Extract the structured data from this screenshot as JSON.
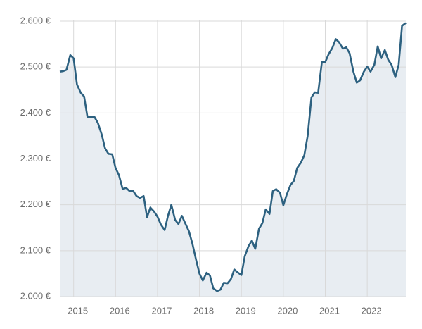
{
  "chart_data": {
    "type": "area",
    "x": [
      2014.67,
      2014.75,
      2014.83,
      2014.92,
      2015.0,
      2015.08,
      2015.17,
      2015.25,
      2015.33,
      2015.42,
      2015.5,
      2015.58,
      2015.67,
      2015.75,
      2015.83,
      2015.92,
      2016.0,
      2016.08,
      2016.17,
      2016.25,
      2016.33,
      2016.42,
      2016.5,
      2016.58,
      2016.67,
      2016.75,
      2016.83,
      2016.92,
      2017.0,
      2017.08,
      2017.17,
      2017.25,
      2017.33,
      2017.42,
      2017.5,
      2017.58,
      2017.67,
      2017.75,
      2017.83,
      2017.92,
      2018.0,
      2018.08,
      2018.17,
      2018.25,
      2018.33,
      2018.42,
      2018.5,
      2018.58,
      2018.67,
      2018.75,
      2018.83,
      2018.92,
      2019.0,
      2019.08,
      2019.17,
      2019.25,
      2019.33,
      2019.42,
      2019.5,
      2019.58,
      2019.67,
      2019.75,
      2019.83,
      2019.92,
      2020.0,
      2020.08,
      2020.17,
      2020.25,
      2020.33,
      2020.42,
      2020.5,
      2020.58,
      2020.67,
      2020.75,
      2020.83,
      2020.92,
      2021.0,
      2021.08,
      2021.17,
      2021.25,
      2021.33,
      2021.42,
      2021.5,
      2021.58,
      2021.67,
      2021.75,
      2021.83,
      2021.92,
      2022.0,
      2022.08,
      2022.17,
      2022.25,
      2022.33,
      2022.42,
      2022.5,
      2022.58,
      2022.67,
      2022.75,
      2022.83,
      2022.92
    ],
    "series": [
      {
        "color": "#2d6180",
        "fill": "#e8edf2",
        "values": [
          2490,
          2491,
          2494,
          2526,
          2519,
          2462,
          2444,
          2436,
          2391,
          2391,
          2391,
          2378,
          2353,
          2323,
          2311,
          2310,
          2280,
          2265,
          2234,
          2237,
          2230,
          2230,
          2219,
          2215,
          2219,
          2173,
          2194,
          2185,
          2174,
          2157,
          2145,
          2176,
          2200,
          2167,
          2158,
          2176,
          2158,
          2142,
          2116,
          2080,
          2050,
          2035,
          2052,
          2046,
          2018,
          2012,
          2015,
          2030,
          2029,
          2038,
          2059,
          2052,
          2047,
          2088,
          2110,
          2122,
          2104,
          2148,
          2160,
          2190,
          2180,
          2230,
          2234,
          2226,
          2199,
          2222,
          2243,
          2252,
          2280,
          2292,
          2308,
          2350,
          2434,
          2445,
          2444,
          2512,
          2511,
          2528,
          2542,
          2561,
          2554,
          2540,
          2543,
          2530,
          2490,
          2466,
          2471,
          2490,
          2501,
          2490,
          2505,
          2545,
          2519,
          2537,
          2516,
          2505,
          2478,
          2505,
          2590,
          2596
        ]
      }
    ],
    "xlim": [
      2014.67,
      2022.92
    ],
    "xticks": [
      2015,
      2016,
      2017,
      2018,
      2019,
      2020,
      2021,
      2022
    ],
    "ylim": [
      2000,
      2600
    ],
    "yticks": [
      {
        "value": 2000,
        "label": "2.000 €"
      },
      {
        "value": 2100,
        "label": "2.100 €"
      },
      {
        "value": 2200,
        "label": "2.200 €"
      },
      {
        "value": 2300,
        "label": "2.300 €"
      },
      {
        "value": 2400,
        "label": "2.400 €"
      },
      {
        "value": 2500,
        "label": "2.500 €"
      },
      {
        "value": 2600,
        "label": "2.600 €"
      }
    ],
    "grid": true
  }
}
